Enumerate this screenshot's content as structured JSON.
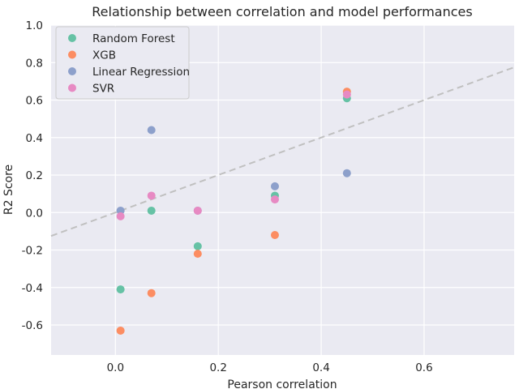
{
  "chart_data": {
    "type": "scatter",
    "title": "Relationship between correlation and model performances",
    "xlabel": "Pearson correlation",
    "ylabel": "R2 Score",
    "xlim": [
      -0.125,
      0.775
    ],
    "ylim": [
      -0.76,
      1.0
    ],
    "xticks": [
      0.0,
      0.2,
      0.4,
      0.6
    ],
    "xtick_labels": [
      "0.0",
      "0.2",
      "0.4",
      "0.6"
    ],
    "yticks": [
      -0.6,
      -0.4,
      -0.2,
      0.0,
      0.2,
      0.4,
      0.6,
      0.8,
      1.0
    ],
    "ytick_labels": [
      "-0.6",
      "-0.4",
      "-0.2",
      "0.0",
      "0.2",
      "0.4",
      "0.6",
      "0.8",
      "1.0"
    ],
    "grid": true,
    "legend_position": "top-left",
    "reference_line": {
      "style": "dashed",
      "color": "#c0c0c0",
      "slope": 1.0,
      "intercept": 0.0
    },
    "series": [
      {
        "name": "Random Forest",
        "color": "#66c2a5",
        "points": [
          [
            0.01,
            -0.41
          ],
          [
            0.07,
            0.01
          ],
          [
            0.16,
            -0.18
          ],
          [
            0.31,
            0.09
          ],
          [
            0.45,
            0.61
          ]
        ]
      },
      {
        "name": "XGB",
        "color": "#fc8d62",
        "points": [
          [
            0.01,
            -0.63
          ],
          [
            0.07,
            -0.43
          ],
          [
            0.16,
            -0.22
          ],
          [
            0.31,
            -0.12
          ],
          [
            0.45,
            0.645
          ]
        ]
      },
      {
        "name": "Linear Regression",
        "color": "#8da0cb",
        "points": [
          [
            0.01,
            0.01
          ],
          [
            0.07,
            0.44
          ],
          [
            0.16,
            0.01
          ],
          [
            0.31,
            0.14
          ],
          [
            0.45,
            0.21
          ]
        ]
      },
      {
        "name": "SVR",
        "color": "#e78ac3",
        "points": [
          [
            0.01,
            -0.02
          ],
          [
            0.07,
            0.09
          ],
          [
            0.16,
            0.01
          ],
          [
            0.31,
            0.07
          ],
          [
            0.45,
            0.63
          ]
        ]
      }
    ]
  }
}
